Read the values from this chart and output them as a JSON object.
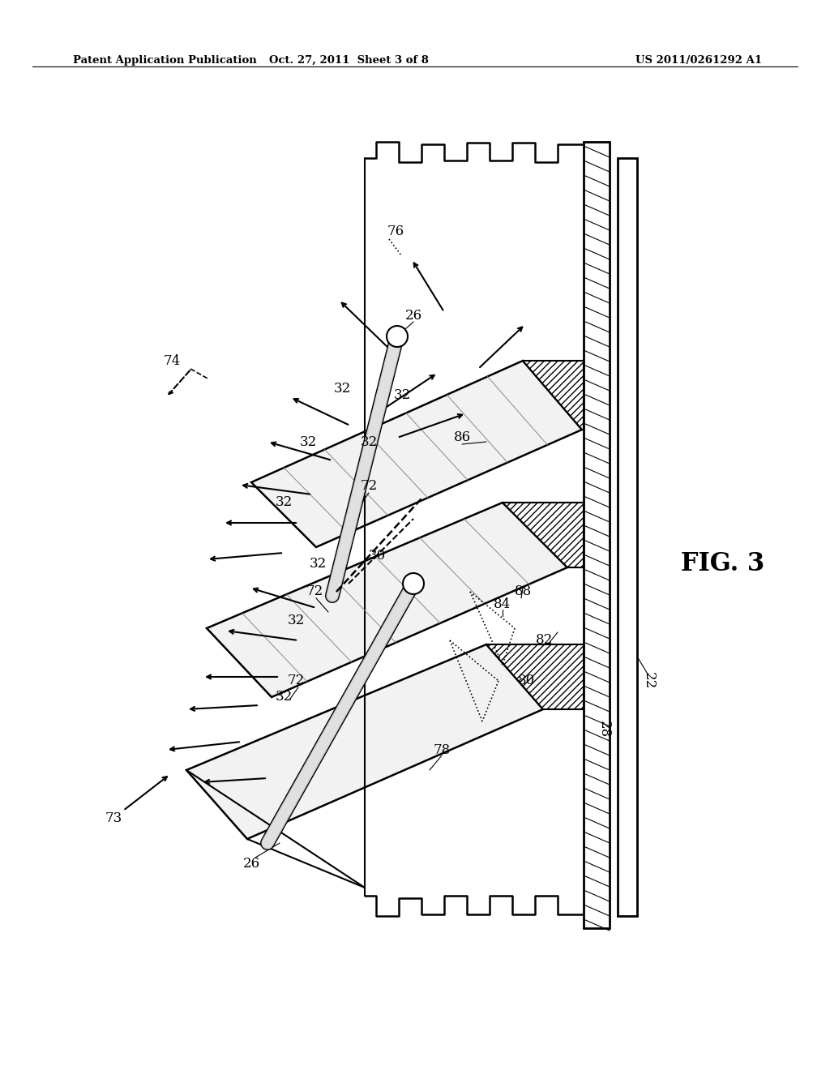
{
  "background_color": "#ffffff",
  "header_left": "Patent Application Publication",
  "header_center": "Oct. 27, 2011  Sheet 3 of 8",
  "header_right": "US 2011/0261292 A1",
  "fig_label": "FIG. 3",
  "page_width": 10.24,
  "page_height": 13.2,
  "dpi": 100
}
